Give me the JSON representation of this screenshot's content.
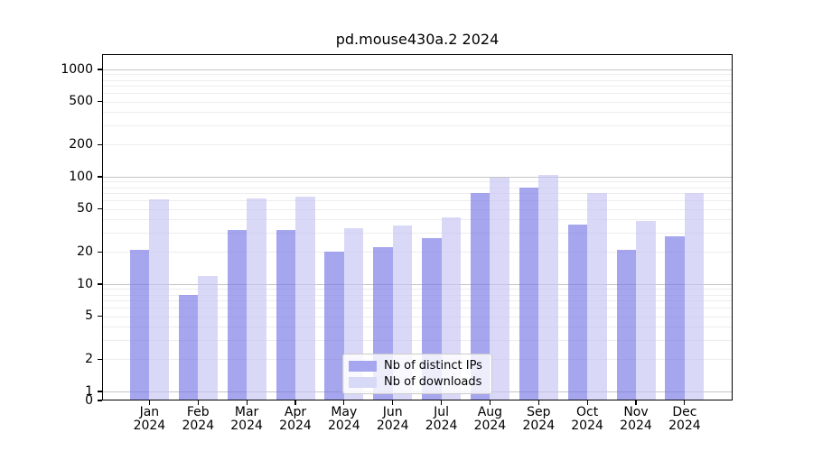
{
  "title": "pd.mouse430a.2 2024",
  "colors": {
    "ips_bar": "#a6a6f0",
    "downloads_bar": "#d8d8f7",
    "ips_bar_rgba": "rgba(118,118,229,0.65)",
    "downloads_bar_rgba": "rgba(196,196,242,0.65)",
    "grid_major": "#c6c6c6",
    "grid_minor": "#ededed",
    "axis": "#000000",
    "legend_border": "#cccccc"
  },
  "legend": {
    "items": [
      {
        "label": "Nb of distinct IPs",
        "swatch": "ips_bar"
      },
      {
        "label": "Nb of downloads",
        "swatch": "downloads_bar"
      }
    ]
  },
  "chart_data": {
    "type": "bar",
    "title": "pd.mouse430a.2 2024",
    "categories": [
      "Jan 2024",
      "Feb 2024",
      "Mar 2024",
      "Apr 2024",
      "May 2024",
      "Jun 2024",
      "Jul 2024",
      "Aug 2024",
      "Sep 2024",
      "Oct 2024",
      "Nov 2024",
      "Dec 2024"
    ],
    "series": [
      {
        "name": "Nb of distinct IPs",
        "values": [
          21,
          8,
          32,
          32,
          20,
          22,
          27,
          70,
          80,
          36,
          21,
          28
        ]
      },
      {
        "name": "Nb of downloads",
        "values": [
          62,
          12,
          63,
          66,
          33,
          35,
          42,
          98,
          105,
          70,
          39,
          70
        ]
      }
    ],
    "xlabel": "",
    "ylabel": "",
    "yscale": "log",
    "yticks": [
      0,
      1,
      2,
      5,
      10,
      20,
      50,
      100,
      200,
      500,
      1000
    ],
    "ylim": [
      0,
      1400
    ],
    "grid": true,
    "legend_position": "lower center"
  }
}
